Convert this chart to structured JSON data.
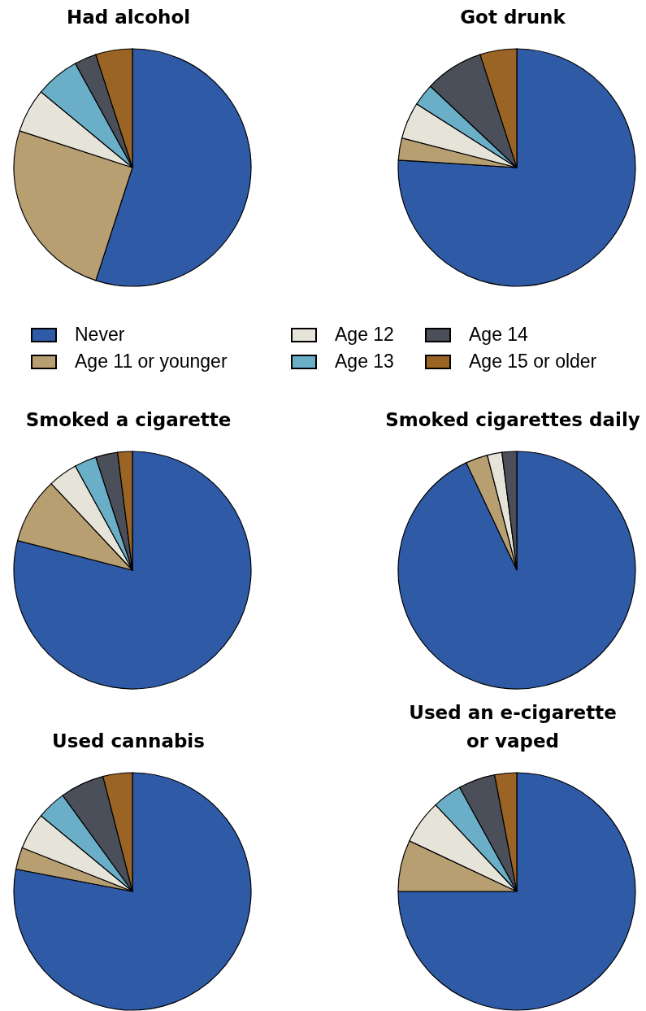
{
  "chart_data": [
    {
      "type": "pie",
      "title": "Had alcohol",
      "categories": [
        "Never",
        "Age 11 or younger",
        "Age 12",
        "Age 13",
        "Age 14",
        "Age 15 or older"
      ],
      "values": [
        55,
        25,
        6,
        6,
        3,
        5
      ],
      "colors": [
        "#2e5aa6",
        "#b89f72",
        "#e6e3d8",
        "#6aaec8",
        "#4a4f59",
        "#9a6424"
      ],
      "legend": "bottom"
    },
    {
      "type": "pie",
      "title": "Got drunk",
      "categories": [
        null,
        null,
        null,
        null,
        null,
        null
      ],
      "values": [
        76,
        3,
        5,
        3,
        8,
        5
      ],
      "colors": [
        "#2e5aa6",
        "#b89f72",
        "#e6e3d8",
        "#6aaec8",
        "#4a4f59",
        "#9a6424"
      ]
    },
    {
      "type": "pie",
      "title": "Smoked a cigarette",
      "categories": [
        null,
        null,
        null,
        null,
        null,
        null
      ],
      "values": [
        79,
        9,
        4,
        3,
        3,
        2
      ],
      "colors": [
        "#2e5aa6",
        "#b89f72",
        "#e6e3d8",
        "#6aaec8",
        "#4a4f59",
        "#9a6424"
      ]
    },
    {
      "type": "pie",
      "title": "Smoked cigarettes daily",
      "categories": [
        null,
        null,
        null,
        null,
        null,
        null
      ],
      "values": [
        93,
        3,
        2,
        0,
        2,
        0
      ],
      "colors": [
        "#2e5aa6",
        "#b89f72",
        "#e6e3d8",
        "#6aaec8",
        "#4a4f59",
        "#9a6424"
      ]
    },
    {
      "type": "pie",
      "title": "Used cannabis",
      "categories": [
        null,
        null,
        null,
        null,
        null,
        null
      ],
      "values": [
        78,
        3,
        5,
        4,
        6,
        4
      ],
      "colors": [
        "#2e5aa6",
        "#b89f72",
        "#e6e3d8",
        "#6aaec8",
        "#4a4f59",
        "#9a6424"
      ]
    },
    {
      "type": "pie",
      "title": "Used an e-cigarette or vaped",
      "categories": [
        null,
        null,
        null,
        null,
        null,
        null
      ],
      "values": [
        75,
        7,
        6,
        4,
        5,
        3
      ],
      "colors": [
        "#2e5aa6",
        "#b89f72",
        "#e6e3d8",
        "#6aaec8",
        "#4a4f59",
        "#9a6424"
      ]
    }
  ]
}
